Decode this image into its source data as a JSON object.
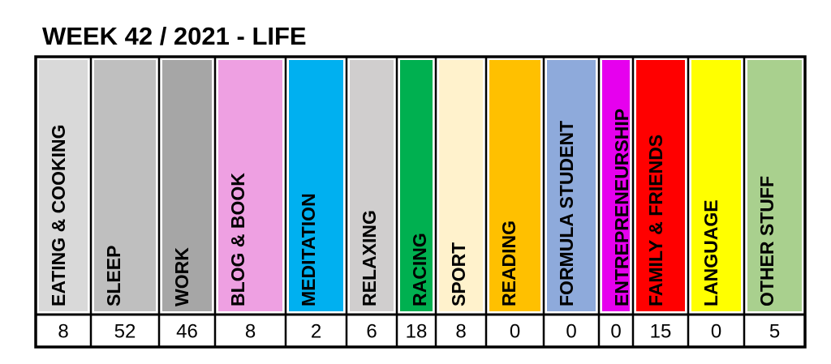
{
  "title": "WEEK 42 / 2021 - LIFE",
  "table": {
    "columns": [
      {
        "label": "EATING & COOKING",
        "color": "#d9d9d9",
        "value": 8
      },
      {
        "label": "SLEEP",
        "color": "#bfbfbf",
        "value": 52
      },
      {
        "label": "WORK",
        "color": "#a6a6a6",
        "value": 46
      },
      {
        "label": "BLOG & BOOK",
        "color": "#eea0e2",
        "value": 8
      },
      {
        "label": "MEDITATION",
        "color": "#00b0f0",
        "value": 2
      },
      {
        "label": "RELAXING",
        "color": "#d0cece",
        "value": 6
      },
      {
        "label": "RACING",
        "color": "#00b050",
        "value": 18
      },
      {
        "label": "SPORT",
        "color": "#fff2cc",
        "value": 8
      },
      {
        "label": "READING",
        "color": "#ffc000",
        "value": 0
      },
      {
        "label": "FORMULA STUDENT",
        "color": "#8eaadb",
        "value": 0
      },
      {
        "label": "ENTREPRENEURSHIP",
        "color": "#e600ee",
        "value": 0
      },
      {
        "label": "FAMILY & FRIENDS",
        "color": "#ff0000",
        "value": 15
      },
      {
        "label": "LANGUAGE",
        "color": "#ffff00",
        "value": 0
      },
      {
        "label": "OTHER STUFF",
        "color": "#a9d08e",
        "value": 5
      }
    ]
  }
}
